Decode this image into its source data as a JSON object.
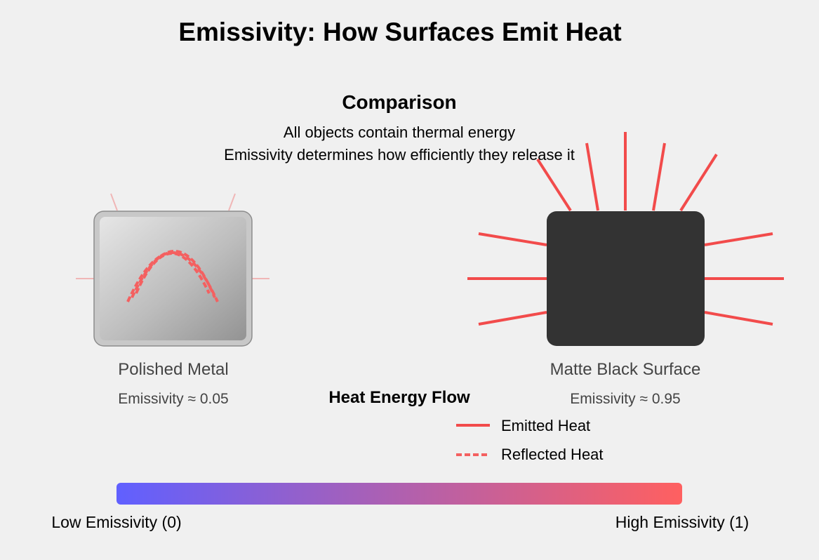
{
  "title": "Emissivity: How Surfaces Emit Heat",
  "comparison": {
    "heading": "Comparison",
    "line1": "All objects contain thermal energy",
    "line2": "Emissivity determines how efficiently they release it"
  },
  "objects": [
    {
      "name": "Polished Metal",
      "emissivity_label": "Emissivity ≈ 0.05",
      "emissivity": 0.05
    },
    {
      "name": "Matte Black Surface",
      "emissivity_label": "Emissivity ≈ 0.95",
      "emissivity": 0.95
    }
  ],
  "legend": {
    "title": "Heat Energy Flow",
    "emitted": "Emitted Heat",
    "reflected": "Reflected Heat"
  },
  "scale": {
    "low_label": "Low Emissivity (0)",
    "high_label": "High Emissivity (1)",
    "low_color": "#6060ff",
    "high_color": "#ff6060"
  },
  "colors": {
    "heat": "#f24b4b",
    "reflected": "#f46060",
    "metal_frame": "#c8c8c8",
    "black_surface": "#333333"
  }
}
